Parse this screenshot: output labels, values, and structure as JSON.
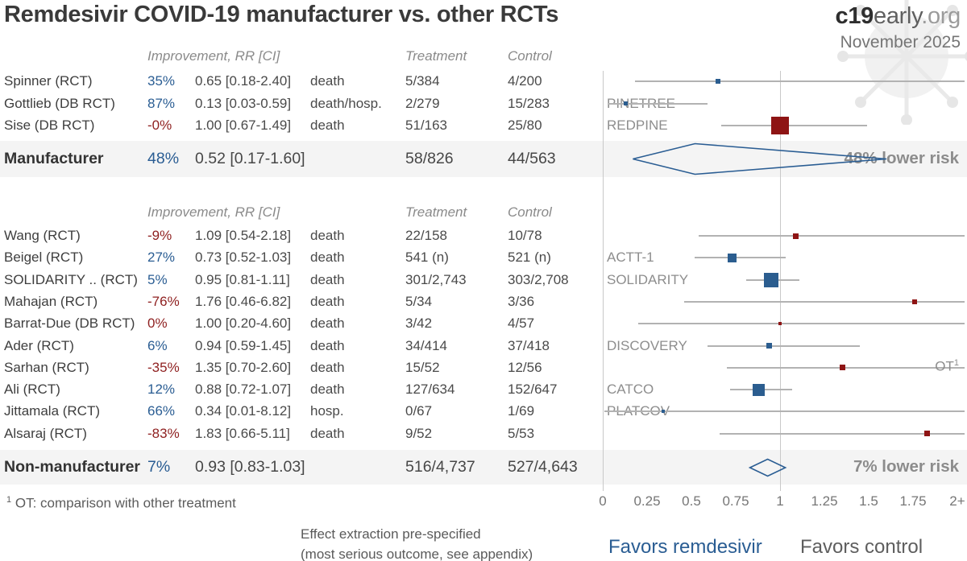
{
  "header": {
    "title": "Remdesivir COVID-19 manufacturer vs. other RCTs",
    "brand_c19": "c19",
    "brand_early": "early",
    "brand_org": ".org",
    "date": "November 2025"
  },
  "colors": {
    "positive_blue": "#2a5d93",
    "negative_red": "#8e1f1f",
    "marker_blue": "#2b5d8f",
    "marker_red": "#8e1414",
    "diamond_stroke": "#2a5d93",
    "ci_line": "#b2b2b2",
    "summary_band": "#f4f4f4"
  },
  "chart_data": {
    "type": "scatter",
    "subtype": "forest-plot",
    "columns": {
      "improvement": "Improvement, RR [CI]",
      "treatment": "Treatment",
      "control": "Control"
    },
    "x_axis": {
      "range": [
        0,
        2
      ],
      "ticks": [
        "0",
        "0.25",
        "0.5",
        "0.75",
        "1",
        "1.25",
        "1.5",
        "1.75",
        "2+"
      ],
      "tick_values": [
        0,
        0.25,
        0.5,
        0.75,
        1,
        1.25,
        1.5,
        1.75,
        2
      ],
      "favors_left": "Favors remdesivir",
      "favors_right": "Favors control",
      "reference_line": 1
    },
    "sections": [
      {
        "studies": [
          {
            "name": "Spinner (RCT)",
            "improvement": "35%",
            "positive": true,
            "rr_text": "0.65 [0.18-2.40]",
            "outcome": "death",
            "treatment": "5/384",
            "control": "4/200",
            "rr": 0.65,
            "lo": 0.18,
            "hi": 2.4,
            "marker": 6,
            "label": null,
            "right_label": null
          },
          {
            "name": "Gottlieb (DB RCT)",
            "improvement": "87%",
            "positive": true,
            "rr_text": "0.13 [0.03-0.59]",
            "outcome": "death/hosp.",
            "treatment": "2/279",
            "control": "15/283",
            "rr": 0.13,
            "lo": 0.03,
            "hi": 0.59,
            "marker": 5,
            "label": "PINETREE",
            "right_label": null
          },
          {
            "name": "Sise (DB RCT)",
            "improvement": "-0%",
            "positive": false,
            "rr_text": "1.00 [0.67-1.49]",
            "outcome": "death",
            "treatment": "51/163",
            "control": "25/80",
            "rr": 1.0,
            "lo": 0.67,
            "hi": 1.49,
            "marker": 22,
            "label": "REDPINE",
            "right_label": null
          }
        ],
        "summary": {
          "name": "Manufacturer",
          "improvement": "48%",
          "positive": true,
          "rr_text": "0.52 [0.17-1.60]",
          "treatment": "58/826",
          "control": "44/563",
          "rr": 0.52,
          "lo": 0.17,
          "hi": 1.6,
          "note": "48% lower risk"
        }
      },
      {
        "studies": [
          {
            "name": "Wang (RCT)",
            "improvement": "-9%",
            "positive": false,
            "rr_text": "1.09 [0.54-2.18]",
            "outcome": "death",
            "treatment": "22/158",
            "control": "10/78",
            "rr": 1.09,
            "lo": 0.54,
            "hi": 2.18,
            "marker": 7,
            "label": null,
            "right_label": null
          },
          {
            "name": "Beigel (RCT)",
            "improvement": "27%",
            "positive": true,
            "rr_text": "0.73 [0.52-1.03]",
            "outcome": "death",
            "treatment": "541 (n)",
            "control": "521 (n)",
            "rr": 0.73,
            "lo": 0.52,
            "hi": 1.03,
            "marker": 11,
            "label": "ACTT-1",
            "right_label": null
          },
          {
            "name": "SOLIDARITY .. (RCT)",
            "improvement": "5%",
            "positive": true,
            "rr_text": "0.95 [0.81-1.11]",
            "outcome": "death",
            "treatment": "301/2,743",
            "control": "303/2,708",
            "rr": 0.95,
            "lo": 0.81,
            "hi": 1.11,
            "marker": 18,
            "label": "SOLIDARITY",
            "right_label": null
          },
          {
            "name": "Mahajan (RCT)",
            "improvement": "-76%",
            "positive": false,
            "rr_text": "1.76 [0.46-6.82]",
            "outcome": "death",
            "treatment": "5/34",
            "control": "3/36",
            "rr": 1.76,
            "lo": 0.46,
            "hi": 6.82,
            "marker": 6,
            "label": null,
            "right_label": null
          },
          {
            "name": "Barrat-Due (DB RCT)",
            "improvement": "0%",
            "positive": false,
            "rr_text": "1.00 [0.20-4.60]",
            "outcome": "death",
            "treatment": "3/42",
            "control": "4/57",
            "rr": 1.0,
            "lo": 0.2,
            "hi": 4.6,
            "marker": 4,
            "label": null,
            "right_label": null
          },
          {
            "name": "Ader (RCT)",
            "improvement": "6%",
            "positive": true,
            "rr_text": "0.94 [0.59-1.45]",
            "outcome": "death",
            "treatment": "34/414",
            "control": "37/418",
            "rr": 0.94,
            "lo": 0.59,
            "hi": 1.45,
            "marker": 7,
            "label": "DISCOVERY",
            "right_label": null
          },
          {
            "name": "Sarhan (RCT)",
            "improvement": "-35%",
            "positive": false,
            "rr_text": "1.35 [0.70-2.60]",
            "outcome": "death",
            "treatment": "15/52",
            "control": "12/56",
            "rr": 1.35,
            "lo": 0.7,
            "hi": 2.6,
            "marker": 7,
            "label": null,
            "right_label": {
              "text": "OT",
              "sup": "1"
            }
          },
          {
            "name": "Ali (RCT)",
            "improvement": "12%",
            "positive": true,
            "rr_text": "0.88 [0.72-1.07]",
            "outcome": "death",
            "treatment": "127/634",
            "control": "152/647",
            "rr": 0.88,
            "lo": 0.72,
            "hi": 1.07,
            "marker": 15,
            "label": "CATCO",
            "right_label": null
          },
          {
            "name": "Jittamala (RCT)",
            "improvement": "66%",
            "positive": true,
            "rr_text": "0.34 [0.01-8.12]",
            "outcome": "hosp.",
            "treatment": "0/67",
            "control": "1/69",
            "rr": 0.34,
            "lo": 0.01,
            "hi": 8.12,
            "marker": 4,
            "label": "PLATCOV",
            "right_label": null
          },
          {
            "name": "Alsaraj (RCT)",
            "improvement": "-83%",
            "positive": false,
            "rr_text": "1.83 [0.66-5.11]",
            "outcome": "death",
            "treatment": "9/52",
            "control": "5/53",
            "rr": 1.83,
            "lo": 0.66,
            "hi": 5.11,
            "marker": 7,
            "label": null,
            "right_label": null
          }
        ],
        "summary": {
          "name": "Non-manufacturer",
          "improvement": "7%",
          "positive": true,
          "rr_text": "0.93 [0.83-1.03]",
          "treatment": "516/4,737",
          "control": "527/4,643",
          "rr": 0.93,
          "lo": 0.83,
          "hi": 1.03,
          "note": "7% lower risk"
        }
      }
    ]
  },
  "footnote": {
    "sup": "1",
    "text": "OT: comparison with other treatment"
  },
  "extraction_note": {
    "line1": "Effect extraction pre-specified",
    "line2": "(most serious outcome, see appendix)"
  }
}
